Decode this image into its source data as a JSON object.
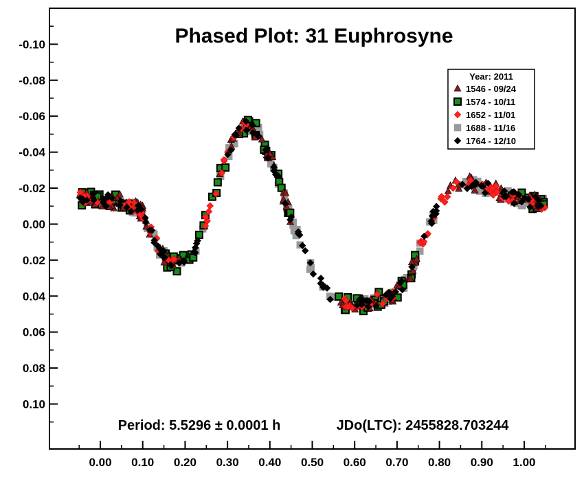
{
  "chart_data": {
    "type": "scatter",
    "title": "Phased Plot: 31 Euphrosyne",
    "xlabel": "",
    "ylabel": "",
    "xlim": [
      -0.12,
      1.12
    ],
    "ylim": [
      -0.12,
      0.125
    ],
    "y_inverted": true,
    "x_ticks": [
      "0.00",
      "0.10",
      "0.20",
      "0.30",
      "0.40",
      "0.50",
      "0.60",
      "0.70",
      "0.80",
      "0.90",
      "1.00"
    ],
    "y_ticks": [
      "-0.10",
      "-0.08",
      "-0.06",
      "-0.04",
      "-0.02",
      "0.00",
      "0.02",
      "0.04",
      "0.06",
      "0.08",
      "0.10"
    ],
    "grid": false,
    "legend": {
      "title": "Year: 2011",
      "placement": "top-right",
      "entries": [
        {
          "label": "1546 - 09/24",
          "marker": "triangle",
          "color": "#8b1a1a"
        },
        {
          "label": "1574 - 10/11",
          "marker": "square",
          "color": "#1a8a1a"
        },
        {
          "label": "1652 - 11/01",
          "marker": "diamond",
          "color": "#ff2020"
        },
        {
          "label": "1688 - 11/16",
          "marker": "square",
          "color": "#9a9a9a"
        },
        {
          "label": "1764 - 12/10",
          "marker": "diamond",
          "color": "#000000"
        }
      ]
    },
    "annotations": {
      "period": "Period: 5.5296 ± 0.0001 h",
      "epoch": "JDo(LTC): 2455828.703244"
    },
    "curve": {
      "phase": [
        -0.05,
        0.0,
        0.05,
        0.1,
        0.13,
        0.16,
        0.19,
        0.22,
        0.25,
        0.28,
        0.31,
        0.34,
        0.37,
        0.4,
        0.43,
        0.46,
        0.49,
        0.52,
        0.55,
        0.58,
        0.61,
        0.64,
        0.67,
        0.7,
        0.73,
        0.76,
        0.79,
        0.82,
        0.85,
        0.88,
        0.91,
        0.94,
        0.97,
        1.0,
        1.05
      ],
      "magnitude": [
        -0.015,
        -0.013,
        -0.013,
        -0.006,
        0.01,
        0.022,
        0.022,
        0.016,
        -0.002,
        -0.025,
        -0.045,
        -0.055,
        -0.052,
        -0.037,
        -0.018,
        0.003,
        0.02,
        0.033,
        0.041,
        0.045,
        0.045,
        0.043,
        0.041,
        0.038,
        0.028,
        0.01,
        -0.007,
        -0.018,
        -0.023,
        -0.022,
        -0.02,
        -0.018,
        -0.015,
        -0.013,
        -0.011
      ]
    },
    "series": [
      {
        "name": "1546 - 09/24",
        "phase_ranges": [
          [
            -0.05,
            0.2
          ],
          [
            0.28,
            0.45
          ],
          [
            0.55,
            0.75
          ],
          [
            0.82,
            1.05
          ]
        ],
        "typical_scatter": 0.004
      },
      {
        "name": "1574 - 10/11",
        "phase_ranges": [
          [
            -0.05,
            0.1
          ],
          [
            0.15,
            0.45
          ],
          [
            0.55,
            0.75
          ],
          [
            0.95,
            1.05
          ]
        ],
        "typical_scatter": 0.004
      },
      {
        "name": "1652 - 11/01",
        "phase_ranges": [
          [
            -0.05,
            0.2
          ],
          [
            0.24,
            0.35
          ],
          [
            0.55,
            0.7
          ],
          [
            0.75,
            1.05
          ]
        ],
        "typical_scatter": 0.003
      },
      {
        "name": "1688 - 11/16",
        "phase_ranges": [
          [
            -0.05,
            0.25
          ],
          [
            0.28,
            0.55
          ],
          [
            0.6,
            0.8
          ],
          [
            0.85,
            1.05
          ]
        ],
        "typical_scatter": 0.003
      },
      {
        "name": "1764 - 12/10",
        "phase_ranges": [
          [
            -0.05,
            0.25
          ],
          [
            0.3,
            0.55
          ],
          [
            0.6,
            0.8
          ],
          [
            0.85,
            1.05
          ]
        ],
        "typical_scatter": 0.003
      }
    ]
  }
}
